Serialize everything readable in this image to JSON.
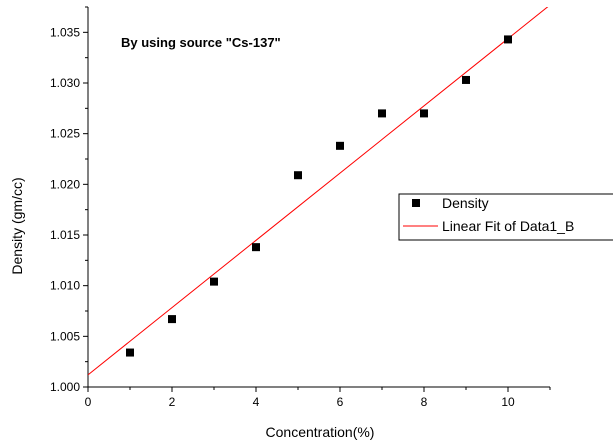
{
  "chart_data": {
    "type": "scatter",
    "annotation": "By using source \"Cs-137\"",
    "xlabel": "Concentration(%)",
    "ylabel": "Density (gm/cc)",
    "xlim": [
      0,
      11
    ],
    "ylim": [
      1.0,
      1.0375
    ],
    "x_ticks": [
      0,
      2,
      4,
      6,
      8,
      10
    ],
    "x_tick_labels": [
      "0",
      "2",
      "4",
      "6",
      "8",
      "10"
    ],
    "y_ticks": [
      1.0,
      1.005,
      1.01,
      1.015,
      1.02,
      1.025,
      1.03,
      1.035
    ],
    "y_tick_labels": [
      "1.000",
      "1.005",
      "1.010",
      "1.015",
      "1.020",
      "1.025",
      "1.030",
      "1.035"
    ],
    "grid": false,
    "legend_position": "right",
    "series": [
      {
        "name": "Density",
        "kind": "scatter",
        "marker": "square",
        "color": "#000000",
        "x": [
          1,
          2,
          3,
          4,
          5,
          6,
          7,
          8,
          9,
          10
        ],
        "y": [
          1.0034,
          1.0067,
          1.0104,
          1.0138,
          1.0209,
          1.0238,
          1.027,
          1.027,
          1.0303,
          1.0343
        ]
      },
      {
        "name": "Linear Fit of Data1_B",
        "kind": "line",
        "color": "#ff0000",
        "x": [
          0,
          11
        ],
        "y": [
          1.0012,
          1.0377
        ]
      }
    ]
  }
}
